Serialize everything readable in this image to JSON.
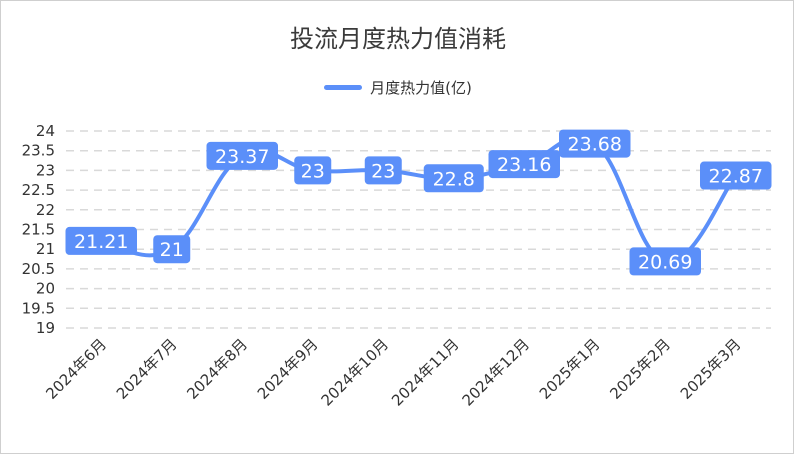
{
  "title": "投流月度热力值消耗",
  "colors": {
    "series": "#5b8ff9",
    "grid": "#d9d9d9"
  },
  "chart_data": {
    "type": "line",
    "title": "投流月度热力值消耗",
    "categories": [
      "2024年6月",
      "2024年7月",
      "2024年8月",
      "2024年9月",
      "2024年10月",
      "2024年11月",
      "2024年12月",
      "2025年1月",
      "2025年2月",
      "2025年3月"
    ],
    "series": [
      {
        "name": "月度热力值(亿)",
        "values": [
          21.21,
          21,
          23.37,
          23,
          23,
          22.8,
          23.16,
          23.68,
          20.69,
          22.87
        ]
      }
    ],
    "yticks": [
      "24",
      "23.5",
      "23",
      "22.5",
      "22",
      "21.5",
      "21",
      "20.5",
      "20",
      "19.5",
      "19"
    ],
    "ylim": [
      19,
      24
    ],
    "grid": true,
    "legend": "top-center",
    "data_labels": true
  }
}
